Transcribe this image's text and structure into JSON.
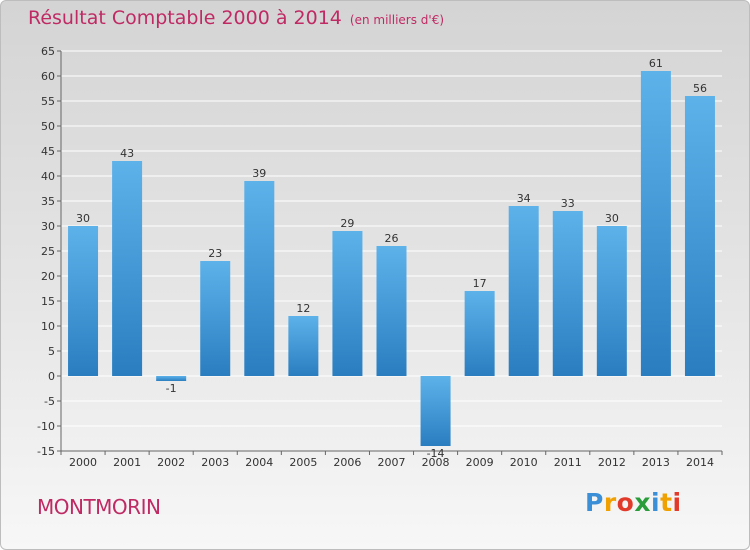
{
  "chart_data": {
    "type": "bar",
    "title": "Résultat Comptable 2000 à 2014",
    "subtitle": "(en milliers d'€)",
    "categories": [
      "2000",
      "2001",
      "2002",
      "2003",
      "2004",
      "2005",
      "2006",
      "2007",
      "2008",
      "2009",
      "2010",
      "2011",
      "2012",
      "2013",
      "2014"
    ],
    "values": [
      30,
      43,
      -1,
      23,
      39,
      12,
      29,
      26,
      -14,
      17,
      34,
      33,
      30,
      61,
      56
    ],
    "data_labels": [
      "30",
      "43",
      "-1",
      "23",
      "39",
      "12",
      "29",
      "26",
      "-14",
      "17",
      "34",
      "33",
      "30",
      "61",
      "56"
    ],
    "ylim": [
      -15,
      65
    ],
    "yticks": [
      -15,
      -10,
      -5,
      0,
      5,
      10,
      15,
      20,
      25,
      30,
      35,
      40,
      45,
      50,
      55,
      60,
      65
    ],
    "grid": true,
    "xlabel": "",
    "ylabel": ""
  },
  "commune": "MONTMORIN",
  "logo": {
    "letters": [
      "P",
      "r",
      "o",
      "x",
      "i",
      "t",
      "i"
    ],
    "colors": [
      "#3a8fd6",
      "#f0a000",
      "#e23a2a",
      "#2a9d3a",
      "#3a8fd6",
      "#f0a000",
      "#e23a2a"
    ]
  },
  "colors": {
    "title": "#c02a64",
    "bar_light": "#5eb2ea",
    "bar_dark": "#2a7ec0",
    "grid": "#ffffff"
  }
}
